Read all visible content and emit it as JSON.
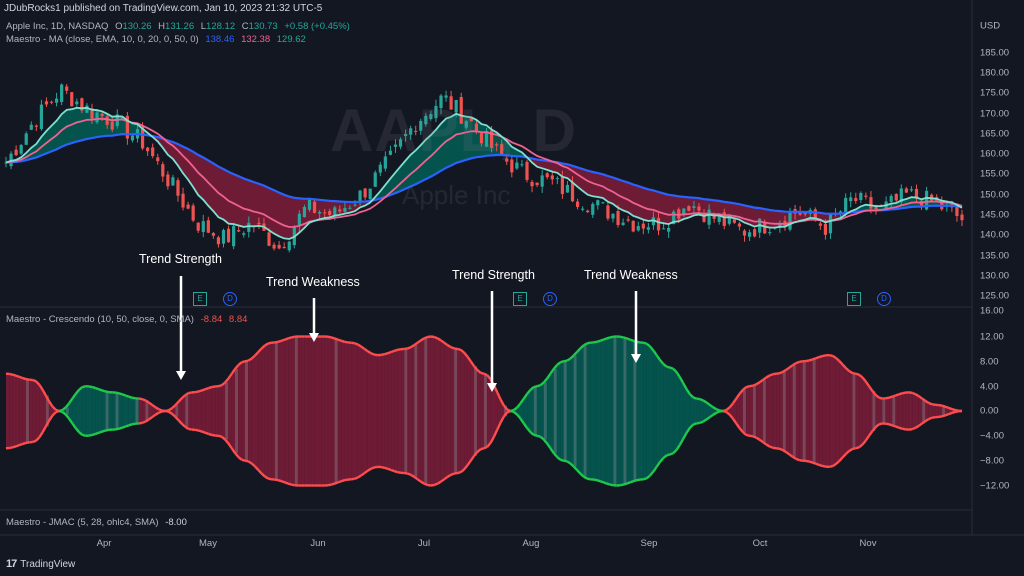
{
  "header": {
    "publisher": "JDubRocks1 published on TradingView.com, Jan 10, 2023 21:32 UTC-5"
  },
  "price_legend": {
    "symbol": "Apple Inc, 1D, NASDAQ",
    "o_label": "O",
    "o_value": "130.26",
    "h_label": "H",
    "h_value": "131.26",
    "l_label": "L",
    "l_value": "128.12",
    "c_label": "C",
    "c_value": "130.73",
    "change": "+0.58 (+0.45%)"
  },
  "ma_legend": {
    "name": "Maestro - MA (close, EMA, 10, 0, 20, 0, 50, 0)",
    "v1": "138.46",
    "v2": "132.38",
    "v3": "129.62"
  },
  "crescendo_legend": {
    "name": "Maestro - Crescendo (10, 50, close, 0, SMA)",
    "v1": "-8.84",
    "v2": "8.84"
  },
  "jmac_legend": {
    "name": "Maestro - JMAC (5, 28, ohlc4, SMA)",
    "v1": "-8.00"
  },
  "watermark": {
    "title": "AAPL, D",
    "subtitle": "Apple Inc"
  },
  "price_axis": {
    "currency": "USD",
    "ticks": [
      "185.00",
      "180.00",
      "175.00",
      "170.00",
      "165.00",
      "160.00",
      "155.00",
      "150.00",
      "145.00",
      "140.00",
      "135.00",
      "130.00",
      "125.00"
    ]
  },
  "osc_axis": {
    "ticks": [
      "16.00",
      "12.00",
      "8.00",
      "4.00",
      "0.00",
      "−4.00",
      "−8.00",
      "−12.00"
    ]
  },
  "time_axis": {
    "labels": [
      "Apr",
      "May",
      "Jun",
      "Jul",
      "Aug",
      "Sep",
      "Oct",
      "Nov"
    ]
  },
  "annotations": {
    "a1": "Trend Strength",
    "a2": "Trend Weakness",
    "a3": "Trend Strength",
    "a4": "Trend Weakness"
  },
  "badges": {
    "e": "E",
    "d": "D"
  },
  "footer": {
    "logo": "17",
    "brand": "TradingView"
  },
  "colors": {
    "background": "#131722",
    "up": "#26a69a",
    "down": "#ef5350",
    "ma_fast": "#7fe0d0",
    "ma_mid": "#f06292",
    "ma_slow": "#2962ff",
    "bull_fill": "#00695c",
    "bear_fill": "#8e1d3c"
  },
  "chart_data": [
    {
      "type": "candlestick",
      "title": "",
      "ylim": [
        122,
        188
      ],
      "x": [
        "Apr",
        "May",
        "Jun",
        "Jul",
        "Aug",
        "Sep",
        "Oct",
        "Nov"
      ],
      "close_trend": [
        158,
        168,
        176,
        171,
        168,
        163,
        153,
        143,
        139,
        143,
        137,
        147,
        145,
        150,
        158,
        168,
        174,
        168,
        160,
        155,
        153,
        149,
        146,
        143,
        143,
        148,
        144,
        141,
        143,
        146,
        142,
        149,
        146,
        150,
        148,
        144
      ]
    },
    {
      "type": "area",
      "title": "Maestro - Crescendo",
      "ylim": [
        -16,
        16
      ],
      "envelope": [
        6,
        5,
        0,
        4,
        3,
        2,
        0,
        3,
        4,
        8,
        11,
        12,
        12,
        11,
        9,
        10,
        12,
        10,
        6,
        0,
        4,
        8,
        11,
        12,
        11,
        7,
        2,
        0,
        4,
        6,
        8,
        9,
        6,
        2,
        3,
        1,
        0
      ],
      "trend_state": [
        "bear",
        "bear",
        "bull",
        "bull",
        "bull",
        "bear",
        "bear",
        "bear",
        "bear",
        "bear",
        "bear",
        "bear",
        "bear",
        "bear",
        "bear",
        "bear",
        "bear",
        "bear",
        "bear",
        "bull",
        "bull",
        "bull",
        "bull",
        "bull",
        "bull",
        "bull",
        "bull",
        "bear",
        "bear",
        "bear",
        "bear",
        "bear",
        "bear",
        "bear",
        "bear",
        "bear",
        "bull"
      ]
    }
  ]
}
